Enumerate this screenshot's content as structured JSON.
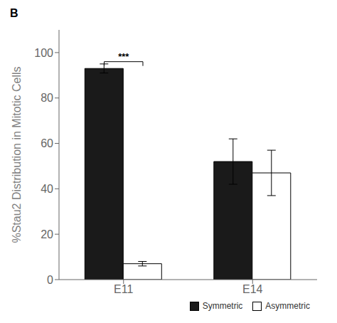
{
  "chart_data": {
    "type": "bar",
    "title": "B",
    "categories": [
      "E11",
      "E14"
    ],
    "series": [
      {
        "name": "Symmetric",
        "color": "#1a1a1a",
        "values": [
          93,
          52
        ],
        "errors": [
          2,
          10
        ]
      },
      {
        "name": "Asymmetric",
        "color": "#ffffff",
        "values": [
          7,
          47
        ],
        "errors": [
          1,
          10
        ]
      }
    ],
    "ylabel": "%Stau2 Distribution in Mitotic Cells",
    "ylim": [
      0,
      110
    ],
    "yticks": [
      0,
      20,
      40,
      60,
      80,
      100
    ],
    "grid": false,
    "legend": "lower right",
    "annotations": [
      {
        "text": "***",
        "x": "E11",
        "y": 96
      }
    ]
  }
}
